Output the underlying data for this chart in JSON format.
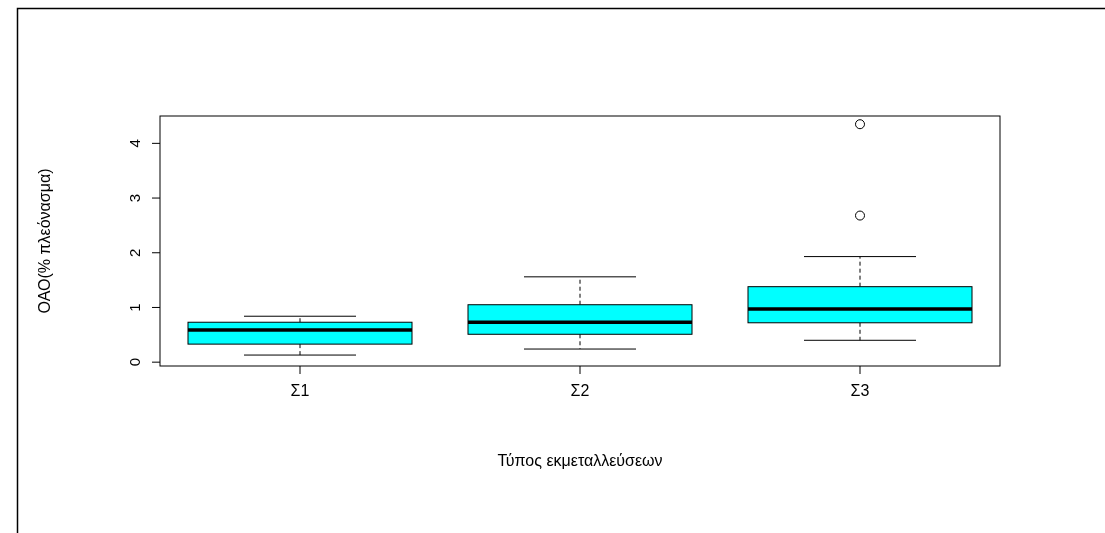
{
  "chart_data": {
    "type": "box",
    "xlabel": "Τύπος εκμεταλλεύσεων",
    "ylabel": "ΟΑΟ(% πλεόνασμα)",
    "categories": [
      "Σ1",
      "Σ2",
      "Σ3"
    ],
    "color": "#00ffff",
    "ylim": [
      -0.07,
      4.5
    ],
    "yticks": [
      0,
      1,
      2,
      3,
      4
    ],
    "grid": false,
    "boxes": [
      {
        "low": 0.13,
        "q1": 0.33,
        "median": 0.59,
        "q3": 0.73,
        "high": 0.84
      },
      {
        "low": 0.24,
        "q1": 0.51,
        "median": 0.73,
        "q3": 1.05,
        "high": 1.56
      },
      {
        "low": 0.4,
        "q1": 0.72,
        "median": 0.97,
        "q3": 1.38,
        "high": 1.93,
        "outliers": [
          2.68,
          4.35
        ]
      }
    ]
  }
}
